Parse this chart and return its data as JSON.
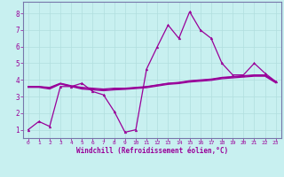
{
  "xlabel": "Windchill (Refroidissement éolien,°C)",
  "background_color": "#c8f0f0",
  "grid_color": "#b0dede",
  "line_color": "#990099",
  "spine_color": "#7777aa",
  "x_ticks": [
    0,
    1,
    2,
    3,
    4,
    5,
    6,
    7,
    8,
    9,
    10,
    11,
    12,
    13,
    14,
    15,
    16,
    17,
    18,
    19,
    20,
    21,
    22,
    23
  ],
  "y_ticks": [
    1,
    2,
    3,
    4,
    5,
    6,
    7,
    8
  ],
  "ylim": [
    0.5,
    8.7
  ],
  "xlim": [
    -0.5,
    23.5
  ],
  "series0": [
    1.0,
    1.5,
    1.2,
    3.6,
    3.6,
    3.8,
    3.3,
    3.1,
    2.1,
    0.85,
    1.0,
    4.65,
    6.0,
    7.3,
    6.5,
    8.1,
    7.0,
    6.5,
    5.0,
    4.3,
    4.3,
    5.0,
    4.4,
    3.9
  ],
  "series1": [
    3.6,
    3.6,
    3.55,
    3.8,
    3.65,
    3.55,
    3.5,
    3.45,
    3.5,
    3.5,
    3.55,
    3.6,
    3.7,
    3.8,
    3.85,
    3.95,
    4.0,
    4.05,
    4.15,
    4.2,
    4.25,
    4.3,
    4.3,
    3.9
  ],
  "series2": [
    3.6,
    3.6,
    3.5,
    3.78,
    3.62,
    3.5,
    3.45,
    3.4,
    3.45,
    3.48,
    3.52,
    3.58,
    3.68,
    3.78,
    3.83,
    3.92,
    3.97,
    4.02,
    4.12,
    4.17,
    4.22,
    4.27,
    4.27,
    3.87
  ],
  "series3": [
    3.55,
    3.55,
    3.45,
    3.75,
    3.6,
    3.45,
    3.4,
    3.35,
    3.4,
    3.43,
    3.48,
    3.53,
    3.63,
    3.73,
    3.78,
    3.87,
    3.92,
    3.97,
    4.07,
    4.12,
    4.17,
    4.22,
    4.22,
    3.82
  ]
}
